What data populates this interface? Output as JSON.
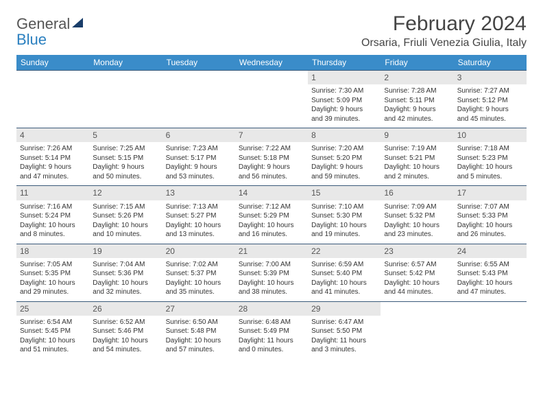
{
  "logo": {
    "line1": "General",
    "line2": "Blue"
  },
  "title": "February 2024",
  "location": "Orsaria, Friuli Venezia Giulia, Italy",
  "dayNames": [
    "Sunday",
    "Monday",
    "Tuesday",
    "Wednesday",
    "Thursday",
    "Friday",
    "Saturday"
  ],
  "colors": {
    "header_bg": "#3a8cc9",
    "header_text": "#ffffff",
    "week_border": "#3a5a7a",
    "daynum_bg": "#e8e8e8",
    "text": "#333333",
    "logo_gray": "#555555",
    "logo_blue": "#2a7fbf",
    "logo_triangle": "#1a3e6a"
  },
  "typography": {
    "title_fontsize": 30,
    "location_fontsize": 16,
    "dayheader_fontsize": 12,
    "daynum_fontsize": 12,
    "body_fontsize": 10
  },
  "weeks": [
    [
      {
        "day": "",
        "sunrise": "",
        "sunset": "",
        "daylight1": "",
        "daylight2": "",
        "empty": true
      },
      {
        "day": "",
        "sunrise": "",
        "sunset": "",
        "daylight1": "",
        "daylight2": "",
        "empty": true
      },
      {
        "day": "",
        "sunrise": "",
        "sunset": "",
        "daylight1": "",
        "daylight2": "",
        "empty": true
      },
      {
        "day": "",
        "sunrise": "",
        "sunset": "",
        "daylight1": "",
        "daylight2": "",
        "empty": true
      },
      {
        "day": "1",
        "sunrise": "Sunrise: 7:30 AM",
        "sunset": "Sunset: 5:09 PM",
        "daylight1": "Daylight: 9 hours",
        "daylight2": "and 39 minutes."
      },
      {
        "day": "2",
        "sunrise": "Sunrise: 7:28 AM",
        "sunset": "Sunset: 5:11 PM",
        "daylight1": "Daylight: 9 hours",
        "daylight2": "and 42 minutes."
      },
      {
        "day": "3",
        "sunrise": "Sunrise: 7:27 AM",
        "sunset": "Sunset: 5:12 PM",
        "daylight1": "Daylight: 9 hours",
        "daylight2": "and 45 minutes."
      }
    ],
    [
      {
        "day": "4",
        "sunrise": "Sunrise: 7:26 AM",
        "sunset": "Sunset: 5:14 PM",
        "daylight1": "Daylight: 9 hours",
        "daylight2": "and 47 minutes."
      },
      {
        "day": "5",
        "sunrise": "Sunrise: 7:25 AM",
        "sunset": "Sunset: 5:15 PM",
        "daylight1": "Daylight: 9 hours",
        "daylight2": "and 50 minutes."
      },
      {
        "day": "6",
        "sunrise": "Sunrise: 7:23 AM",
        "sunset": "Sunset: 5:17 PM",
        "daylight1": "Daylight: 9 hours",
        "daylight2": "and 53 minutes."
      },
      {
        "day": "7",
        "sunrise": "Sunrise: 7:22 AM",
        "sunset": "Sunset: 5:18 PM",
        "daylight1": "Daylight: 9 hours",
        "daylight2": "and 56 minutes."
      },
      {
        "day": "8",
        "sunrise": "Sunrise: 7:20 AM",
        "sunset": "Sunset: 5:20 PM",
        "daylight1": "Daylight: 9 hours",
        "daylight2": "and 59 minutes."
      },
      {
        "day": "9",
        "sunrise": "Sunrise: 7:19 AM",
        "sunset": "Sunset: 5:21 PM",
        "daylight1": "Daylight: 10 hours",
        "daylight2": "and 2 minutes."
      },
      {
        "day": "10",
        "sunrise": "Sunrise: 7:18 AM",
        "sunset": "Sunset: 5:23 PM",
        "daylight1": "Daylight: 10 hours",
        "daylight2": "and 5 minutes."
      }
    ],
    [
      {
        "day": "11",
        "sunrise": "Sunrise: 7:16 AM",
        "sunset": "Sunset: 5:24 PM",
        "daylight1": "Daylight: 10 hours",
        "daylight2": "and 8 minutes."
      },
      {
        "day": "12",
        "sunrise": "Sunrise: 7:15 AM",
        "sunset": "Sunset: 5:26 PM",
        "daylight1": "Daylight: 10 hours",
        "daylight2": "and 10 minutes."
      },
      {
        "day": "13",
        "sunrise": "Sunrise: 7:13 AM",
        "sunset": "Sunset: 5:27 PM",
        "daylight1": "Daylight: 10 hours",
        "daylight2": "and 13 minutes."
      },
      {
        "day": "14",
        "sunrise": "Sunrise: 7:12 AM",
        "sunset": "Sunset: 5:29 PM",
        "daylight1": "Daylight: 10 hours",
        "daylight2": "and 16 minutes."
      },
      {
        "day": "15",
        "sunrise": "Sunrise: 7:10 AM",
        "sunset": "Sunset: 5:30 PM",
        "daylight1": "Daylight: 10 hours",
        "daylight2": "and 19 minutes."
      },
      {
        "day": "16",
        "sunrise": "Sunrise: 7:09 AM",
        "sunset": "Sunset: 5:32 PM",
        "daylight1": "Daylight: 10 hours",
        "daylight2": "and 23 minutes."
      },
      {
        "day": "17",
        "sunrise": "Sunrise: 7:07 AM",
        "sunset": "Sunset: 5:33 PM",
        "daylight1": "Daylight: 10 hours",
        "daylight2": "and 26 minutes."
      }
    ],
    [
      {
        "day": "18",
        "sunrise": "Sunrise: 7:05 AM",
        "sunset": "Sunset: 5:35 PM",
        "daylight1": "Daylight: 10 hours",
        "daylight2": "and 29 minutes."
      },
      {
        "day": "19",
        "sunrise": "Sunrise: 7:04 AM",
        "sunset": "Sunset: 5:36 PM",
        "daylight1": "Daylight: 10 hours",
        "daylight2": "and 32 minutes."
      },
      {
        "day": "20",
        "sunrise": "Sunrise: 7:02 AM",
        "sunset": "Sunset: 5:37 PM",
        "daylight1": "Daylight: 10 hours",
        "daylight2": "and 35 minutes."
      },
      {
        "day": "21",
        "sunrise": "Sunrise: 7:00 AM",
        "sunset": "Sunset: 5:39 PM",
        "daylight1": "Daylight: 10 hours",
        "daylight2": "and 38 minutes."
      },
      {
        "day": "22",
        "sunrise": "Sunrise: 6:59 AM",
        "sunset": "Sunset: 5:40 PM",
        "daylight1": "Daylight: 10 hours",
        "daylight2": "and 41 minutes."
      },
      {
        "day": "23",
        "sunrise": "Sunrise: 6:57 AM",
        "sunset": "Sunset: 5:42 PM",
        "daylight1": "Daylight: 10 hours",
        "daylight2": "and 44 minutes."
      },
      {
        "day": "24",
        "sunrise": "Sunrise: 6:55 AM",
        "sunset": "Sunset: 5:43 PM",
        "daylight1": "Daylight: 10 hours",
        "daylight2": "and 47 minutes."
      }
    ],
    [
      {
        "day": "25",
        "sunrise": "Sunrise: 6:54 AM",
        "sunset": "Sunset: 5:45 PM",
        "daylight1": "Daylight: 10 hours",
        "daylight2": "and 51 minutes."
      },
      {
        "day": "26",
        "sunrise": "Sunrise: 6:52 AM",
        "sunset": "Sunset: 5:46 PM",
        "daylight1": "Daylight: 10 hours",
        "daylight2": "and 54 minutes."
      },
      {
        "day": "27",
        "sunrise": "Sunrise: 6:50 AM",
        "sunset": "Sunset: 5:48 PM",
        "daylight1": "Daylight: 10 hours",
        "daylight2": "and 57 minutes."
      },
      {
        "day": "28",
        "sunrise": "Sunrise: 6:48 AM",
        "sunset": "Sunset: 5:49 PM",
        "daylight1": "Daylight: 11 hours",
        "daylight2": "and 0 minutes."
      },
      {
        "day": "29",
        "sunrise": "Sunrise: 6:47 AM",
        "sunset": "Sunset: 5:50 PM",
        "daylight1": "Daylight: 11 hours",
        "daylight2": "and 3 minutes."
      },
      {
        "day": "",
        "sunrise": "",
        "sunset": "",
        "daylight1": "",
        "daylight2": "",
        "empty": true
      },
      {
        "day": "",
        "sunrise": "",
        "sunset": "",
        "daylight1": "",
        "daylight2": "",
        "empty": true
      }
    ]
  ]
}
